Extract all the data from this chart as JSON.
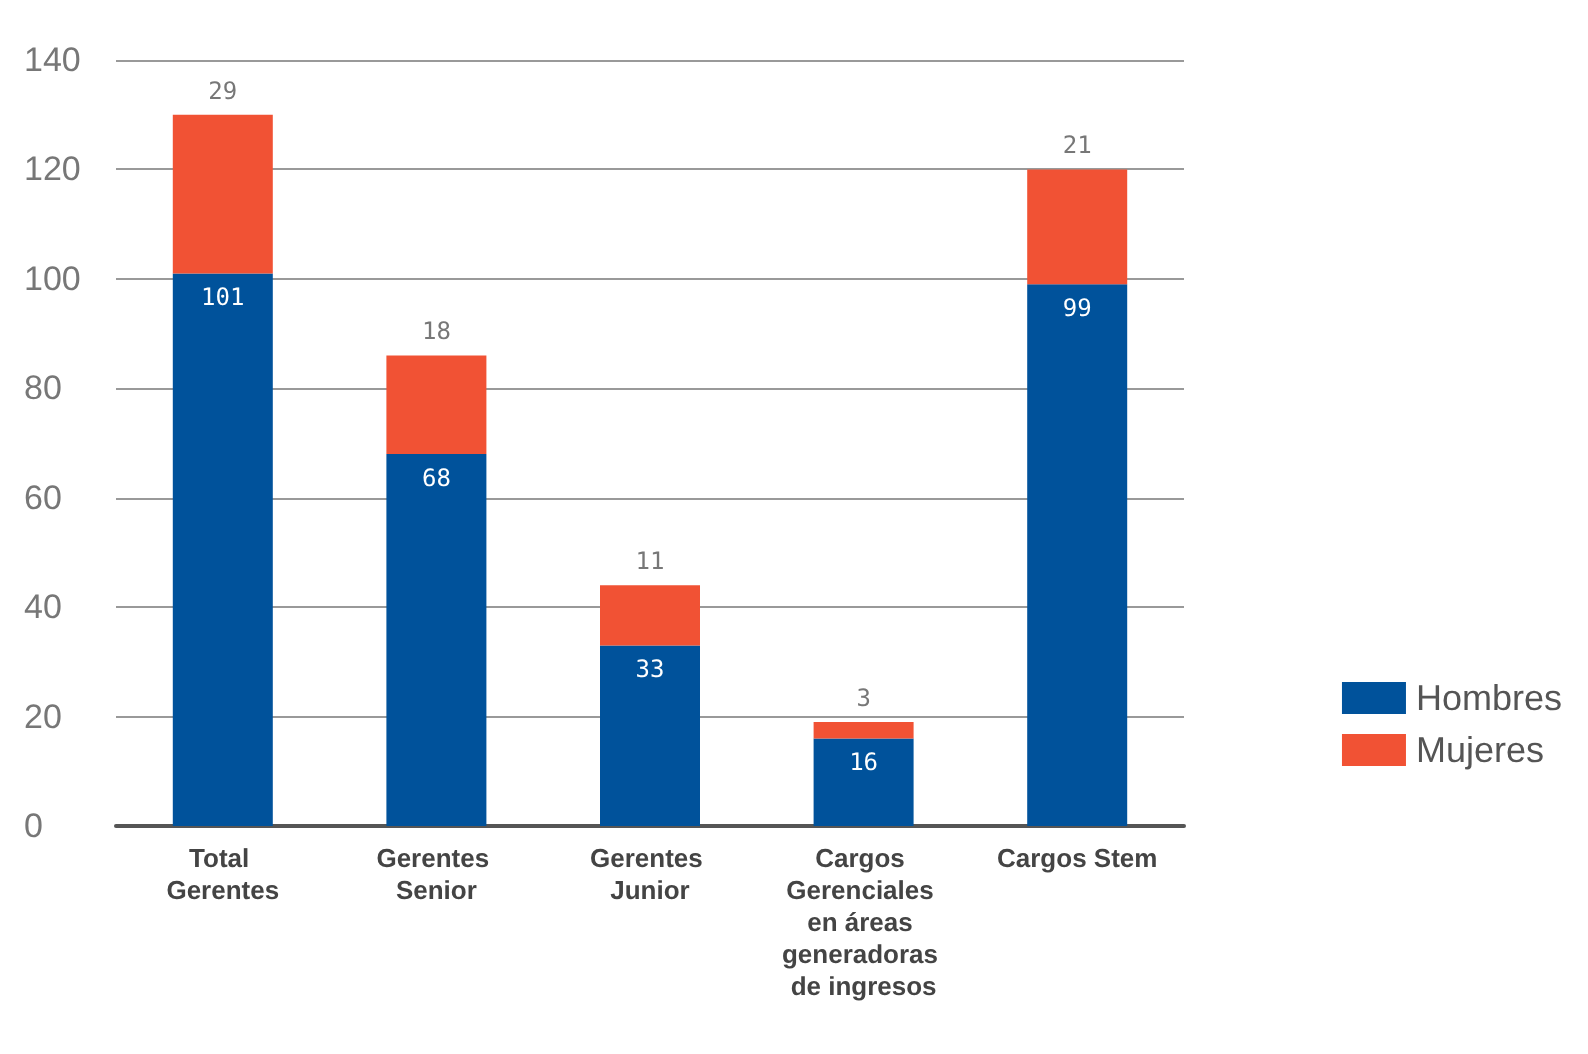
{
  "chart_data": {
    "type": "bar",
    "stacked": true,
    "categories": [
      "Total Gerentes",
      "Gerentes Senior",
      "Gerentes Junior",
      "Cargos Gerenciales en áreas generadoras de ingresos",
      "Cargos Stem"
    ],
    "series": [
      {
        "name": "Hombres",
        "color": "#00529b",
        "values": [
          101,
          68,
          33,
          16,
          99
        ]
      },
      {
        "name": "Mujeres",
        "color": "#f15234",
        "values": [
          29,
          18,
          11,
          3,
          21
        ]
      }
    ],
    "ylim": [
      0,
      140
    ],
    "yticks": [
      0,
      20,
      40,
      60,
      80,
      100,
      120,
      140
    ],
    "grid": "y",
    "legend": "bottom right",
    "data_labels": true
  }
}
